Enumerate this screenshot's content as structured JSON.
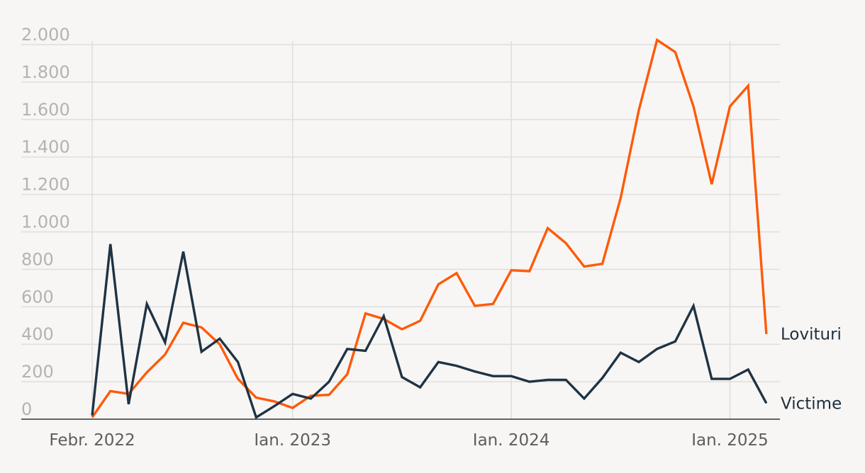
{
  "chart_data": {
    "type": "line",
    "title": "",
    "xlabel": "",
    "ylabel": "",
    "ylim": [
      0,
      2000
    ],
    "y_ticks": [
      0,
      200,
      400,
      600,
      800,
      1000,
      1200,
      1400,
      1600,
      1800,
      2000
    ],
    "y_tick_labels": [
      "0",
      "200",
      "400",
      "600",
      "800",
      "1.000",
      "1.200",
      "1.400",
      "1.600",
      "1.800",
      "2.000"
    ],
    "x": [
      "2022-02",
      "2022-03",
      "2022-04",
      "2022-05",
      "2022-06",
      "2022-07",
      "2022-08",
      "2022-09",
      "2022-10",
      "2022-11",
      "2022-12",
      "2023-01",
      "2023-02",
      "2023-03",
      "2023-04",
      "2023-05",
      "2023-06",
      "2023-07",
      "2023-08",
      "2023-09",
      "2023-10",
      "2023-11",
      "2023-12",
      "2024-01",
      "2024-02",
      "2024-03",
      "2024-04",
      "2024-05",
      "2024-06",
      "2024-07",
      "2024-08",
      "2024-09",
      "2024-10",
      "2024-11",
      "2024-12",
      "2025-01",
      "2025-02",
      "2025-03"
    ],
    "x_ticks": [
      "2022-02",
      "2023-01",
      "2024-01",
      "2025-01"
    ],
    "x_tick_labels": [
      "Febr. 2022",
      "Ian. 2023",
      "Ian. 2024",
      "Ian. 2025"
    ],
    "grid": true,
    "legend": "inline labels at line ends",
    "series": [
      {
        "name": "Lovituri",
        "color": "#fe5a0a",
        "values": [
          10,
          150,
          135,
          250,
          345,
          515,
          490,
          400,
          215,
          115,
          95,
          60,
          125,
          130,
          240,
          565,
          535,
          480,
          525,
          720,
          780,
          605,
          615,
          795,
          790,
          1020,
          940,
          815,
          830,
          1180,
          1650,
          2025,
          1960,
          1670,
          1255,
          1670,
          1780,
          455
        ]
      },
      {
        "name": "Victime",
        "color": "#1f3344",
        "values": [
          20,
          935,
          80,
          615,
          410,
          895,
          360,
          430,
          305,
          10,
          70,
          135,
          110,
          200,
          375,
          365,
          550,
          225,
          170,
          305,
          285,
          255,
          230,
          230,
          200,
          210,
          210,
          110,
          220,
          355,
          305,
          375,
          415,
          605,
          215,
          215,
          265,
          85
        ]
      }
    ]
  }
}
